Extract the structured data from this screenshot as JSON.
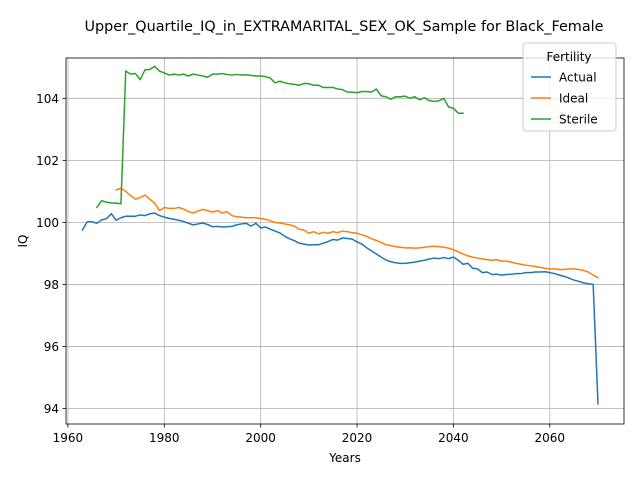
{
  "chart_data": {
    "type": "line",
    "title": "Upper_Quartile_IQ_in_EXTRAMARITAL_SEX_OK_Sample for Black_Female",
    "xlabel": "Years",
    "ylabel": "IQ",
    "xlim": [
      1959.6,
      2075.4
    ],
    "ylim": [
      93.5,
      105.3
    ],
    "xticks": [
      1960,
      1980,
      2000,
      2020,
      2040,
      2060
    ],
    "yticks": [
      94,
      96,
      98,
      100,
      102,
      104
    ],
    "grid": true,
    "legend": {
      "title": "Fertility",
      "placement": "top-right"
    },
    "series": [
      {
        "name": "Actual",
        "color": "#1f77b4",
        "x": [
          1963,
          1964,
          1965,
          1966,
          1967,
          1968,
          1969,
          1970,
          1971,
          1972,
          1973,
          1974,
          1975,
          1976,
          1977,
          1978,
          1979,
          1980,
          1981,
          1982,
          1983,
          1984,
          1985,
          1986,
          1987,
          1988,
          1989,
          1990,
          1991,
          1992,
          1993,
          1994,
          1995,
          1996,
          1997,
          1998,
          1999,
          2000,
          2001,
          2002,
          2003,
          2004,
          2005,
          2006,
          2007,
          2008,
          2009,
          2010,
          2011,
          2012,
          2013,
          2014,
          2015,
          2016,
          2017,
          2018,
          2019,
          2020,
          2021,
          2022,
          2023,
          2024,
          2025,
          2026,
          2027,
          2028,
          2029,
          2030,
          2031,
          2032,
          2033,
          2034,
          2035,
          2036,
          2037,
          2038,
          2039,
          2040,
          2041,
          2042,
          2043,
          2044,
          2045,
          2046,
          2047,
          2048,
          2049,
          2050,
          2051,
          2052,
          2053,
          2054,
          2055,
          2056,
          2057,
          2058,
          2059,
          2060,
          2061,
          2062,
          2063,
          2064,
          2065,
          2066,
          2067,
          2068,
          2069,
          2070
        ],
        "values": [
          99.75,
          100.02,
          100.02,
          99.97,
          100.08,
          100.12,
          100.28,
          100.07,
          100.15,
          100.2,
          100.2,
          100.2,
          100.24,
          100.22,
          100.28,
          100.3,
          100.22,
          100.17,
          100.13,
          100.1,
          100.07,
          100.03,
          99.97,
          99.92,
          99.95,
          99.98,
          99.93,
          99.86,
          99.87,
          99.85,
          99.86,
          99.87,
          99.92,
          99.95,
          99.97,
          99.88,
          99.97,
          99.82,
          99.85,
          99.78,
          99.72,
          99.66,
          99.55,
          99.47,
          99.41,
          99.33,
          99.3,
          99.27,
          99.28,
          99.28,
          99.33,
          99.38,
          99.45,
          99.43,
          99.5,
          99.48,
          99.46,
          99.37,
          99.3,
          99.18,
          99.08,
          98.98,
          98.88,
          98.79,
          98.73,
          98.7,
          98.68,
          98.68,
          98.7,
          98.72,
          98.75,
          98.78,
          98.82,
          98.85,
          98.83,
          98.87,
          98.83,
          98.88,
          98.78,
          98.65,
          98.68,
          98.52,
          98.5,
          98.38,
          98.4,
          98.32,
          98.33,
          98.3,
          98.32,
          98.33,
          98.35,
          98.35,
          98.38,
          98.38,
          98.4,
          98.4,
          98.41,
          98.38,
          98.35,
          98.3,
          98.26,
          98.2,
          98.14,
          98.1,
          98.05,
          98.02,
          98.0,
          94.15
        ]
      },
      {
        "name": "Ideal",
        "color": "#ff7f0e",
        "x": [
          1970,
          1971,
          1972,
          1973,
          1974,
          1975,
          1976,
          1977,
          1978,
          1979,
          1980,
          1981,
          1982,
          1983,
          1984,
          1985,
          1986,
          1987,
          1988,
          1989,
          1990,
          1991,
          1992,
          1993,
          1994,
          1995,
          1996,
          1997,
          1998,
          1999,
          2000,
          2001,
          2002,
          2003,
          2004,
          2005,
          2006,
          2007,
          2008,
          2009,
          2010,
          2011,
          2012,
          2013,
          2014,
          2015,
          2016,
          2017,
          2018,
          2019,
          2020,
          2021,
          2022,
          2023,
          2024,
          2025,
          2026,
          2027,
          2028,
          2029,
          2030,
          2031,
          2032,
          2033,
          2034,
          2035,
          2036,
          2037,
          2038,
          2039,
          2040,
          2041,
          2042,
          2043,
          2044,
          2045,
          2046,
          2047,
          2048,
          2049,
          2050,
          2051,
          2052,
          2053,
          2054,
          2055,
          2056,
          2057,
          2058,
          2059,
          2060,
          2061,
          2062,
          2063,
          2064,
          2065,
          2066,
          2067,
          2068,
          2069,
          2070
        ],
        "values": [
          101.05,
          101.1,
          101.0,
          100.87,
          100.75,
          100.8,
          100.88,
          100.75,
          100.62,
          100.38,
          100.48,
          100.45,
          100.45,
          100.48,
          100.43,
          100.35,
          100.3,
          100.37,
          100.42,
          100.38,
          100.33,
          100.38,
          100.3,
          100.35,
          100.22,
          100.18,
          100.17,
          100.15,
          100.15,
          100.15,
          100.12,
          100.1,
          100.05,
          100.0,
          99.98,
          99.95,
          99.92,
          99.88,
          99.78,
          99.75,
          99.65,
          99.7,
          99.63,
          99.68,
          99.65,
          99.7,
          99.67,
          99.72,
          99.7,
          99.67,
          99.65,
          99.6,
          99.55,
          99.47,
          99.42,
          99.35,
          99.28,
          99.25,
          99.22,
          99.2,
          99.18,
          99.18,
          99.17,
          99.18,
          99.2,
          99.22,
          99.23,
          99.22,
          99.2,
          99.17,
          99.12,
          99.05,
          98.98,
          98.92,
          98.88,
          98.85,
          98.82,
          98.8,
          98.78,
          98.8,
          98.75,
          98.75,
          98.72,
          98.68,
          98.65,
          98.62,
          98.6,
          98.58,
          98.55,
          98.52,
          98.5,
          98.5,
          98.48,
          98.48,
          98.5,
          98.5,
          98.48,
          98.45,
          98.4,
          98.3,
          98.22
        ]
      },
      {
        "name": "Sterile",
        "color": "#2ca02c",
        "x": [
          1966,
          1967,
          1968,
          1969,
          1970,
          1971,
          1972,
          1973,
          1974,
          1975,
          1976,
          1977,
          1978,
          1979,
          1980,
          1981,
          1982,
          1983,
          1984,
          1985,
          1986,
          1987,
          1988,
          1989,
          1990,
          1991,
          1992,
          1993,
          1994,
          1995,
          1996,
          1997,
          1998,
          1999,
          2000,
          2001,
          2002,
          2003,
          2004,
          2005,
          2006,
          2007,
          2008,
          2009,
          2010,
          2011,
          2012,
          2013,
          2014,
          2015,
          2016,
          2017,
          2018,
          2019,
          2020,
          2021,
          2022,
          2023,
          2024,
          2025,
          2026,
          2027,
          2028,
          2029,
          2030,
          2031,
          2032,
          2033,
          2034,
          2035,
          2036,
          2037,
          2038,
          2039,
          2040,
          2041,
          2042
        ],
        "values": [
          100.48,
          100.7,
          100.65,
          100.63,
          100.62,
          100.6,
          104.88,
          104.78,
          104.8,
          104.6,
          104.92,
          104.93,
          105.03,
          104.88,
          104.82,
          104.75,
          104.78,
          104.75,
          104.78,
          104.72,
          104.78,
          104.75,
          104.72,
          104.68,
          104.78,
          104.78,
          104.8,
          104.77,
          104.75,
          104.77,
          104.75,
          104.76,
          104.74,
          104.72,
          104.72,
          104.7,
          104.65,
          104.5,
          104.55,
          104.5,
          104.47,
          104.45,
          104.42,
          104.48,
          104.47,
          104.42,
          104.42,
          104.35,
          104.35,
          104.35,
          104.3,
          104.28,
          104.2,
          104.2,
          104.18,
          104.22,
          104.22,
          104.2,
          104.3,
          104.08,
          104.05,
          103.97,
          104.05,
          104.05,
          104.07,
          104.0,
          104.05,
          103.95,
          104.02,
          103.92,
          103.9,
          103.92,
          104.0,
          103.72,
          103.68,
          103.52,
          103.52
        ]
      }
    ]
  }
}
